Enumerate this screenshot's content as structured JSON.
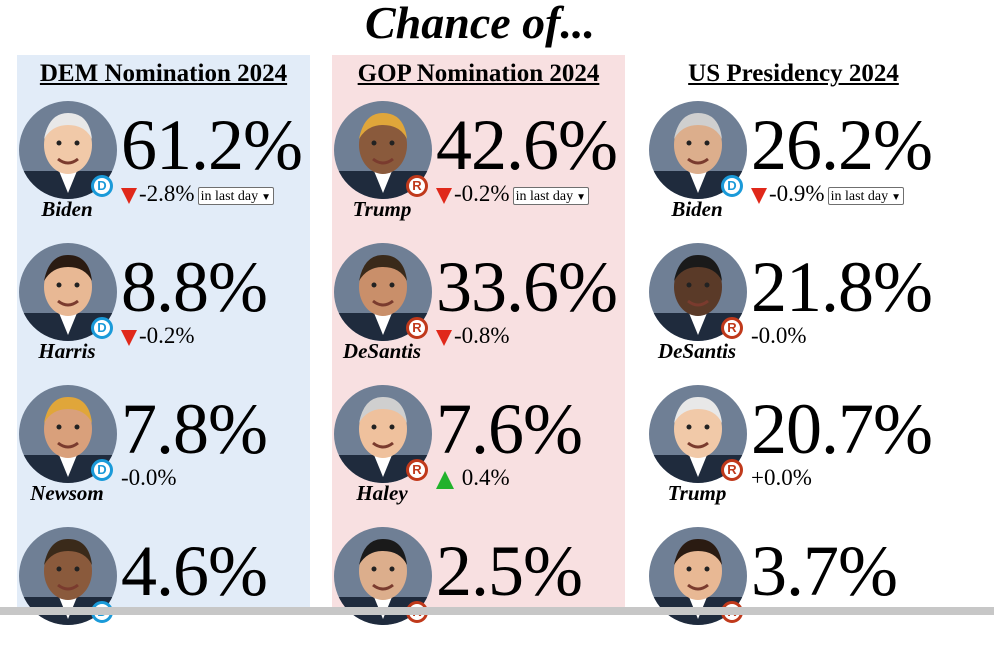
{
  "page_title": "Chance of...",
  "columns": [
    {
      "header": "DEM Nomination 2024",
      "candidates": [
        {
          "name": "Biden",
          "party": "D",
          "pct": "61.2%",
          "change": "-2.8%",
          "trend": "down",
          "period": "in last day"
        },
        {
          "name": "Harris",
          "party": "D",
          "pct": "8.8%",
          "change": "-0.2%",
          "trend": "down"
        },
        {
          "name": "Newsom",
          "party": "D",
          "pct": "7.8%",
          "change": "-0.0%",
          "trend": "none"
        },
        {
          "name": "",
          "party": "D",
          "pct": "4.6%",
          "change": "",
          "trend": "none"
        }
      ]
    },
    {
      "header": "GOP Nomination 2024",
      "candidates": [
        {
          "name": "Trump",
          "party": "R",
          "pct": "42.6%",
          "change": "-0.2%",
          "trend": "down",
          "period": "in last day"
        },
        {
          "name": "DeSantis",
          "party": "R",
          "pct": "33.6%",
          "change": "-0.8%",
          "trend": "down"
        },
        {
          "name": "Haley",
          "party": "R",
          "pct": "7.6%",
          "change": "0.4%",
          "trend": "up"
        },
        {
          "name": "",
          "party": "R",
          "pct": "2.5%",
          "change": "",
          "trend": "none"
        }
      ]
    },
    {
      "header": "US Presidency 2024",
      "candidates": [
        {
          "name": "Biden",
          "party": "D",
          "pct": "26.2%",
          "change": "-0.9%",
          "trend": "down",
          "period": "in last day"
        },
        {
          "name": "DeSantis",
          "party": "R",
          "pct": "21.8%",
          "change": "-0.0%",
          "trend": "none"
        },
        {
          "name": "Trump",
          "party": "R",
          "pct": "20.7%",
          "change": "+0.0%",
          "trend": "none"
        },
        {
          "name": "",
          "party": "R",
          "pct": "3.7%",
          "change": "",
          "trend": "none"
        }
      ]
    }
  ],
  "colors": {
    "dem_bg": "#e2ecf8",
    "gop_bg": "#f8e0e1",
    "dem_badge": "#1a9ad9",
    "rep_badge": "#c0391b",
    "arrow_down": "#e0281a",
    "arrow_up": "#22b22c"
  },
  "icons": {
    "down": "red-down-triangle-icon",
    "up": "green-up-triangle-icon",
    "dem": "democrat-d-badge-icon",
    "rep": "republican-r-badge-icon"
  }
}
